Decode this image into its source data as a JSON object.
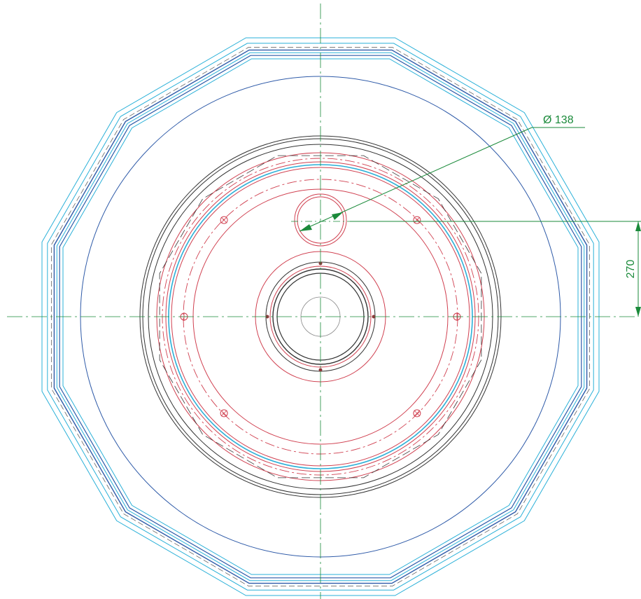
{
  "colors": {
    "background": "#ffffff",
    "centerline": "#1a8a3a",
    "dimension": "#1a8a3a",
    "outline_cyan": "#2ab0d8",
    "outline_blue": "#2e5aa8",
    "outline_black": "#333333",
    "red": "#d04050"
  },
  "dimensions": {
    "diameter_label": "Ø 138",
    "offset_label": "270"
  }
}
